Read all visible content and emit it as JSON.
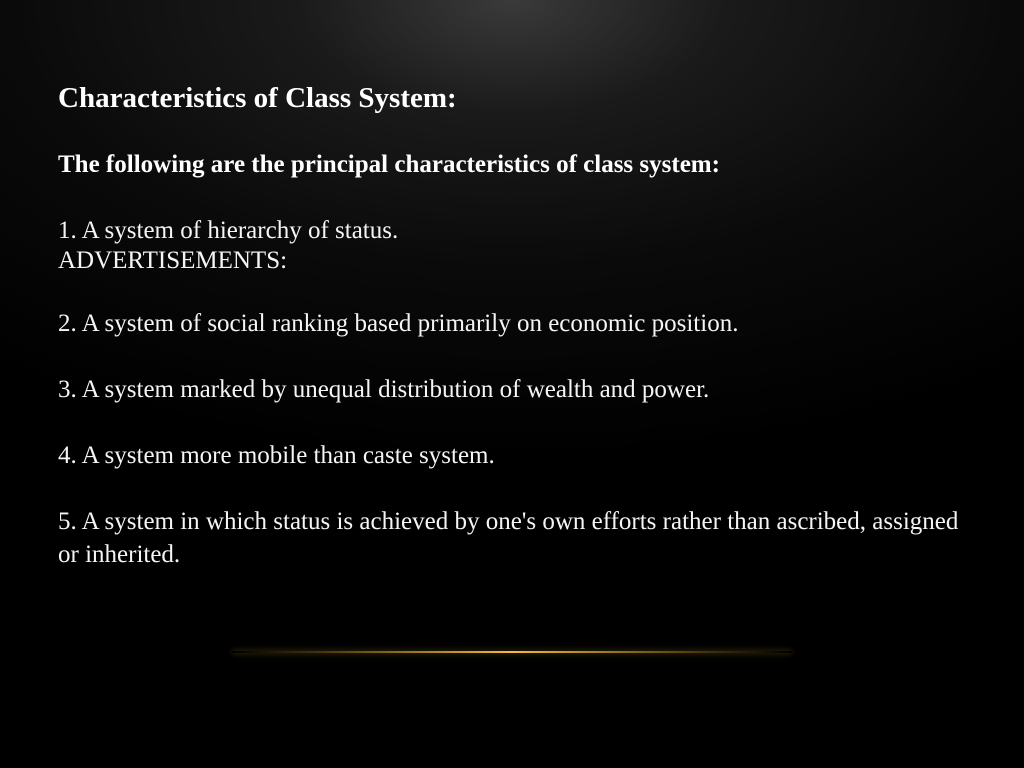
{
  "slide": {
    "title": "Characteristics of Class System:",
    "subtitle": "The following are the principal characteristics of class system:",
    "items": [
      "1. A system of hierarchy of status.",
      "ADVERTISEMENTS:",
      "2. A system of social ranking based primarily on economic position.",
      "3. A system marked by unequal distribution of wealth and power.",
      "4. A system more mobile than caste system.",
      "5. A system in which status is achieved by one's own efforts rather than ascribed, assigned or inherited."
    ]
  },
  "style": {
    "background_gradient_start": "#3a3a3a",
    "background_gradient_end": "#000000",
    "title_color": "#ffffff",
    "text_color": "#f5f5f5",
    "title_fontsize": 29,
    "body_fontsize": 25,
    "accent_line_color": "#daa520",
    "font_family": "Georgia, Times New Roman, serif"
  }
}
